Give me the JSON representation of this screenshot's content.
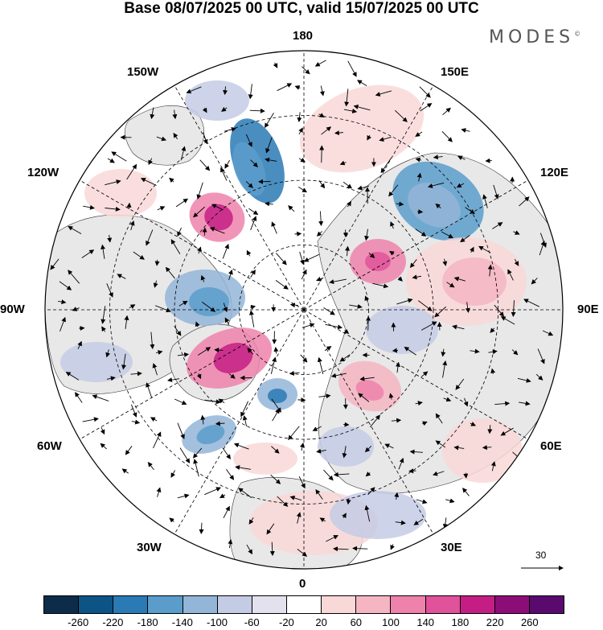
{
  "title": "Base 08/07/2025 00 UTC, valid 15/07/2025 00 UTC",
  "brand": "MODES",
  "brand_mark": "©",
  "map": {
    "projection": "north-polar-stereographic",
    "longitude_labels": [
      {
        "text": "180",
        "lon": 180
      },
      {
        "text": "150E",
        "lon": 150
      },
      {
        "text": "120E",
        "lon": 120
      },
      {
        "text": "90E",
        "lon": 90
      },
      {
        "text": "60E",
        "lon": 60
      },
      {
        "text": "30E",
        "lon": 30
      },
      {
        "text": "0",
        "lon": 0
      },
      {
        "text": "30W",
        "lon": -30
      },
      {
        "text": "60W",
        "lon": -60
      },
      {
        "text": "90W",
        "lon": -90
      },
      {
        "text": "120W",
        "lon": -120
      },
      {
        "text": "150W",
        "lon": -150
      }
    ],
    "land_color": "#e8e8e8",
    "vector_reference": {
      "label": "30",
      "value": 30
    }
  },
  "colorbar": {
    "ticks": [
      "-260",
      "-220",
      "-180",
      "-140",
      "-100",
      "-60",
      "-20",
      "20",
      "60",
      "100",
      "140",
      "180",
      "220",
      "260"
    ],
    "colors": [
      "#0c2c4a",
      "#0c5486",
      "#2a7ab5",
      "#5a9dcb",
      "#93b5d8",
      "#c4cbe4",
      "#e4e1ef",
      "#ffffff",
      "#f9d8d8",
      "#f5b5c2",
      "#ee82ab",
      "#e0529a",
      "#c41e85",
      "#8c0d78",
      "#5a0a6e"
    ]
  }
}
